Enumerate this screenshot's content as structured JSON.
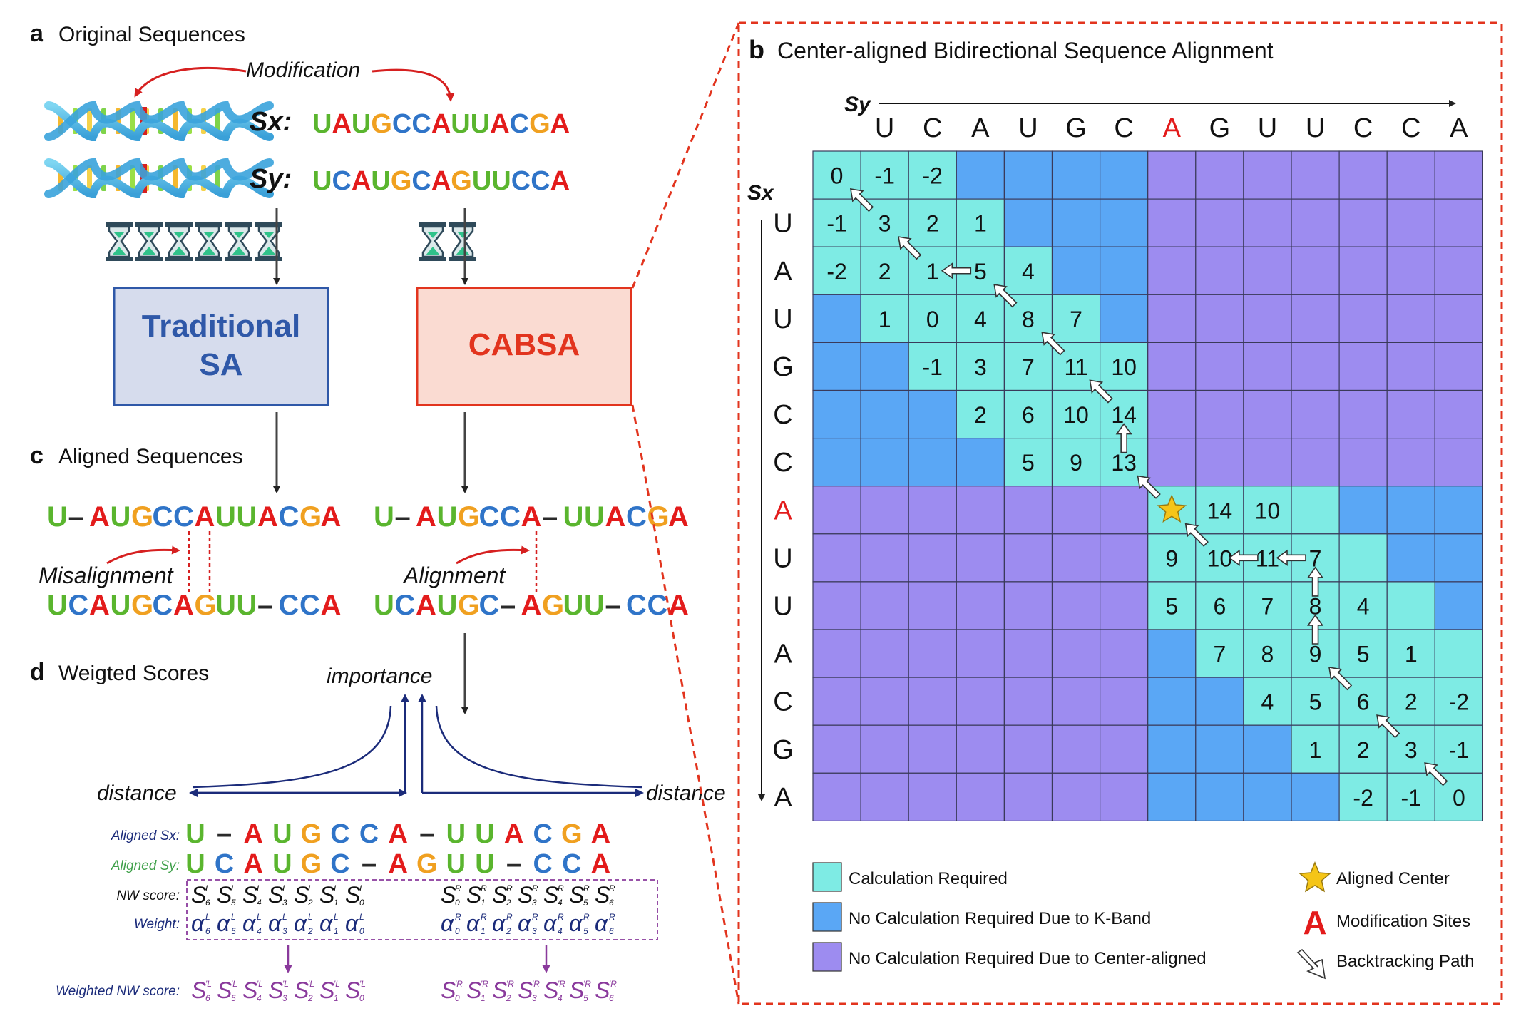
{
  "colors": {
    "A": "#e31b1b",
    "U": "#5ab52e",
    "C": "#2f74c8",
    "G": "#f0a020",
    "other": "#2a2a2a",
    "calc": "#7eebe4",
    "kband": "#5aa7f5",
    "center": "#9d8cf0",
    "traditional_fill": "#d6dced",
    "traditional_stroke": "#2f58a8",
    "cabsa_fill": "#fadbd2",
    "cabsa_stroke": "#e2341e",
    "navy": "#1b2b7a",
    "purple": "#8a3a9c",
    "dashed_red": "#e2341e"
  },
  "panel_a": {
    "letter": "a",
    "title": "Original Sequences",
    "modification": "Modification",
    "sx_label": "Sx:",
    "sx_seq": "UAUGCCAUUACGA",
    "sx_mod_index": 6,
    "sy_label": "Sy:",
    "sy_seq": "UCAUGCAGUUCCA",
    "sy_mod_index": 6,
    "traditional_label": [
      "Traditional",
      "SA"
    ],
    "cabsa_label": "CABSA",
    "hourglass_left": 6,
    "hourglass_right": 2,
    "icons": [
      "dna-icon",
      "hourglass-icon"
    ]
  },
  "panel_c": {
    "letter": "c",
    "title": "Aligned Sequences",
    "left_top": "U–AUGCCAUUACGA",
    "left_bottom": "UCAUGCAGUU–CCA",
    "left_label": "Misalignment",
    "right_top": "U–AUGCCA–UUACGA",
    "right_bottom": "UCAUGC–AGUU–CCA",
    "right_label": "Alignment"
  },
  "panel_d": {
    "letter": "d",
    "title": "Weigted Scores",
    "importance": "importance",
    "distance_left": "distance",
    "distance_right": "distance",
    "aligned_sx_label": "Aligned Sx:",
    "aligned_sx": [
      "U",
      "–",
      "A",
      "U",
      "G",
      "C",
      "C",
      "A",
      "–",
      "U",
      "U",
      "A",
      "C",
      "G",
      "A"
    ],
    "aligned_sy_label": "Aligned Sy:",
    "aligned_sy": [
      "U",
      "C",
      "A",
      "U",
      "G",
      "C",
      "–",
      "A",
      "G",
      "U",
      "U",
      "–",
      "C",
      "C",
      "A"
    ],
    "nw_label": "NW score:",
    "weight_label": "Weight:",
    "weighted_label": "Weighted NW score:",
    "left_indices": [
      "6",
      "5",
      "4",
      "3",
      "2",
      "1",
      "0"
    ],
    "right_indices": [
      "0",
      "1",
      "2",
      "3",
      "4",
      "5",
      "6"
    ],
    "score_sym": "S",
    "weight_sym": "α",
    "left_sup": "L",
    "right_sup": "R",
    "weighted_left_sup": "′L",
    "weighted_right_sup": "′R"
  },
  "panel_b": {
    "letter": "b",
    "title": "Center-aligned Bidirectional Sequence Alignment",
    "sy_label": "Sy",
    "sx_label": "Sx",
    "sy": [
      "U",
      "C",
      "A",
      "U",
      "G",
      "C",
      "A",
      "G",
      "U",
      "U",
      "C",
      "C",
      "A"
    ],
    "sx": [
      "U",
      "A",
      "U",
      "G",
      "C",
      "C",
      "A",
      "U",
      "U",
      "A",
      "C",
      "G",
      "A"
    ],
    "center_index": 6,
    "cells": [
      [
        "0",
        "-1",
        "-2",
        "",
        "",
        "",
        "",
        "",
        "",
        "",
        "",
        "",
        "",
        ""
      ],
      [
        "-1",
        "3",
        "2",
        "1",
        "",
        "",
        "",
        "",
        "",
        "",
        "",
        "",
        "",
        ""
      ],
      [
        "-2",
        "2",
        "1",
        "5",
        "4",
        "",
        "",
        "",
        "",
        "",
        "",
        "",
        "",
        ""
      ],
      [
        "",
        "1",
        "0",
        "4",
        "8",
        "7",
        "",
        "",
        "",
        "",
        "",
        "",
        "",
        ""
      ],
      [
        "",
        "",
        "-1",
        "3",
        "7",
        "11",
        "10",
        "",
        "",
        "",
        "",
        "",
        "",
        ""
      ],
      [
        "",
        "",
        "",
        "2",
        "6",
        "10",
        "14",
        "",
        "",
        "",
        "",
        "",
        "",
        ""
      ],
      [
        "",
        "",
        "",
        "",
        "5",
        "9",
        "13",
        "",
        "",
        "",
        "",
        "",
        "",
        ""
      ],
      [
        "",
        "",
        "",
        "",
        "",
        "",
        "",
        "",
        "14",
        "10",
        "",
        "",
        "",
        ""
      ],
      [
        "",
        "",
        "",
        "",
        "",
        "",
        "",
        "9",
        "10",
        "11",
        "7",
        "",
        "",
        ""
      ],
      [
        "",
        "",
        "",
        "",
        "",
        "",
        "",
        "5",
        "6",
        "7",
        "8",
        "4",
        "",
        ""
      ],
      [
        "",
        "",
        "",
        "",
        "",
        "",
        "",
        "",
        "7",
        "8",
        "9",
        "5",
        "1",
        ""
      ],
      [
        "",
        "",
        "",
        "",
        "",
        "",
        "",
        "",
        "",
        "4",
        "5",
        "6",
        "2",
        "-2"
      ],
      [
        "",
        "",
        "",
        "",
        "",
        "",
        "",
        "",
        "",
        "",
        "1",
        "2",
        "3",
        "-1"
      ],
      [
        "",
        "",
        "",
        "",
        "",
        "",
        "",
        "",
        "",
        "",
        "",
        "-2",
        "-1",
        "0"
      ]
    ],
    "regions": [
      "ccckkkkpppppppp",
      "cccckkkpppppppp",
      "ccccckkpppppppp",
      "kccccckpppppppp",
      "kkccccc pppppppp",
      "kkkcccc pppppppp",
      "kkkkccc pppppppp",
      "pppppppcccckkkk",
      "pppppppccccckkk",
      "pppppppcccccckk",
      "pppppppkcccccck",
      "pppppppkkcccccc",
      "pppppppkkkccccc",
      "pppppppkkkkcccc"
    ],
    "backtrack_path": [
      [
        0,
        0
      ],
      [
        1,
        1
      ],
      [
        2,
        2
      ],
      [
        2,
        3
      ],
      [
        3,
        4
      ],
      [
        4,
        5
      ],
      [
        5,
        6
      ],
      [
        6,
        6
      ],
      [
        7,
        7
      ],
      [
        8,
        8
      ],
      [
        8,
        9
      ],
      [
        8,
        10
      ],
      [
        9,
        10
      ],
      [
        10,
        10
      ],
      [
        11,
        11
      ],
      [
        12,
        12
      ],
      [
        13,
        13
      ]
    ],
    "legend": {
      "calc": "Calculation Required",
      "kband": "No Calculation Required Due to K-Band",
      "center": "No Calculation Required Due to Center-aligned",
      "aligned_center": "Aligned Center",
      "mod_letter": "A",
      "mod_sites": "Modification Sites",
      "backtracking": "Backtracking Path"
    }
  }
}
